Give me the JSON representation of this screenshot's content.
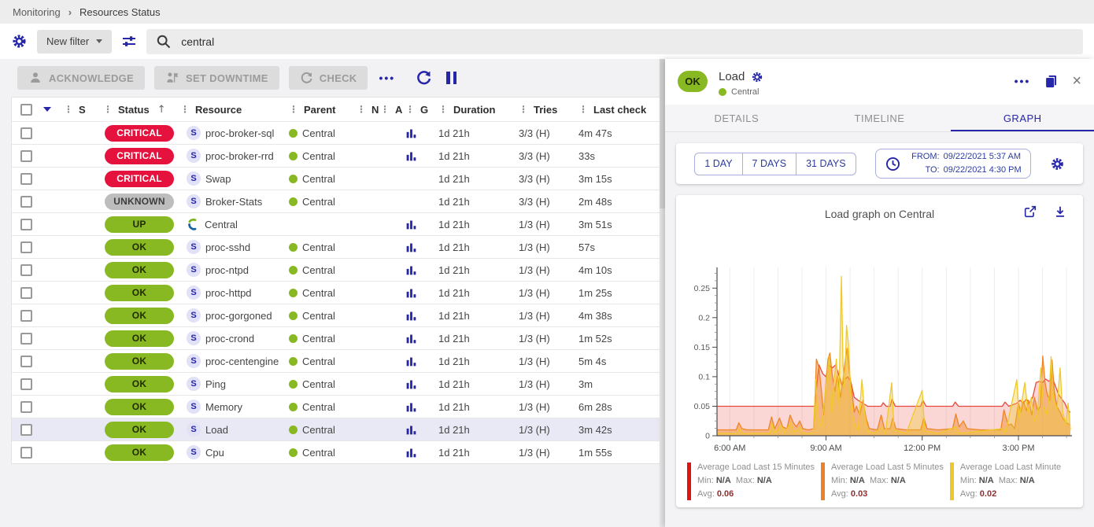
{
  "breadcrumb": {
    "items": [
      "Monitoring",
      "Resources Status"
    ],
    "separator": "›"
  },
  "filter_bar": {
    "new_filter_label": "New filter",
    "search_value": "central"
  },
  "toolbar": {
    "acknowledge_label": "ACKNOWLEDGE",
    "set_downtime_label": "SET DOWNTIME",
    "check_label": "CHECK",
    "more_label": "•••"
  },
  "table": {
    "headers": {
      "s": "S",
      "status": "Status",
      "resource": "Resource",
      "parent": "Parent",
      "n": "N",
      "a": "A",
      "g": "G",
      "duration": "Duration",
      "tries": "Tries",
      "last_check": "Last check"
    },
    "sort_arrow": "↑",
    "rows": [
      {
        "status": "CRITICAL",
        "type": "critical",
        "icon": "service",
        "resource": "proc-broker-sql",
        "parent": "Central",
        "graph": true,
        "duration": "1d 21h",
        "tries": "3/3 (H)",
        "last_check": "4m 47s",
        "selected": false
      },
      {
        "status": "CRITICAL",
        "type": "critical",
        "icon": "service",
        "resource": "proc-broker-rrd",
        "parent": "Central",
        "graph": true,
        "duration": "1d 21h",
        "tries": "3/3 (H)",
        "last_check": "33s",
        "selected": false
      },
      {
        "status": "CRITICAL",
        "type": "critical",
        "icon": "service",
        "resource": "Swap",
        "parent": "Central",
        "graph": false,
        "duration": "1d 21h",
        "tries": "3/3 (H)",
        "last_check": "3m 15s",
        "selected": false
      },
      {
        "status": "UNKNOWN",
        "type": "unknown",
        "icon": "service",
        "resource": "Broker-Stats",
        "parent": "Central",
        "graph": false,
        "duration": "1d 21h",
        "tries": "3/3 (H)",
        "last_check": "2m 48s",
        "selected": false
      },
      {
        "status": "UP",
        "type": "up",
        "icon": "host",
        "resource": "Central",
        "parent": "",
        "graph": true,
        "duration": "1d 21h",
        "tries": "1/3 (H)",
        "last_check": "3m 51s",
        "selected": false
      },
      {
        "status": "OK",
        "type": "ok",
        "icon": "service",
        "resource": "proc-sshd",
        "parent": "Central",
        "graph": true,
        "duration": "1d 21h",
        "tries": "1/3 (H)",
        "last_check": "57s",
        "selected": false
      },
      {
        "status": "OK",
        "type": "ok",
        "icon": "service",
        "resource": "proc-ntpd",
        "parent": "Central",
        "graph": true,
        "duration": "1d 21h",
        "tries": "1/3 (H)",
        "last_check": "4m 10s",
        "selected": false
      },
      {
        "status": "OK",
        "type": "ok",
        "icon": "service",
        "resource": "proc-httpd",
        "parent": "Central",
        "graph": true,
        "duration": "1d 21h",
        "tries": "1/3 (H)",
        "last_check": "1m 25s",
        "selected": false
      },
      {
        "status": "OK",
        "type": "ok",
        "icon": "service",
        "resource": "proc-gorgoned",
        "parent": "Central",
        "graph": true,
        "duration": "1d 21h",
        "tries": "1/3 (H)",
        "last_check": "4m 38s",
        "selected": false
      },
      {
        "status": "OK",
        "type": "ok",
        "icon": "service",
        "resource": "proc-crond",
        "parent": "Central",
        "graph": true,
        "duration": "1d 21h",
        "tries": "1/3 (H)",
        "last_check": "1m 52s",
        "selected": false
      },
      {
        "status": "OK",
        "type": "ok",
        "icon": "service",
        "resource": "proc-centengine",
        "parent": "Central",
        "graph": true,
        "duration": "1d 21h",
        "tries": "1/3 (H)",
        "last_check": "5m 4s",
        "selected": false
      },
      {
        "status": "OK",
        "type": "ok",
        "icon": "service",
        "resource": "Ping",
        "parent": "Central",
        "graph": true,
        "duration": "1d 21h",
        "tries": "1/3 (H)",
        "last_check": "3m",
        "selected": false
      },
      {
        "status": "OK",
        "type": "ok",
        "icon": "service",
        "resource": "Memory",
        "parent": "Central",
        "graph": true,
        "duration": "1d 21h",
        "tries": "1/3 (H)",
        "last_check": "6m 28s",
        "selected": false
      },
      {
        "status": "OK",
        "type": "ok",
        "icon": "service",
        "resource": "Load",
        "parent": "Central",
        "graph": true,
        "duration": "1d 21h",
        "tries": "1/3 (H)",
        "last_check": "3m 42s",
        "selected": true
      },
      {
        "status": "OK",
        "type": "ok",
        "icon": "service",
        "resource": "Cpu",
        "parent": "Central",
        "graph": true,
        "duration": "1d 21h",
        "tries": "1/3 (H)",
        "last_check": "1m 55s",
        "selected": false
      }
    ]
  },
  "panel": {
    "status": "OK",
    "title": "Load",
    "parent": "Central",
    "close_label": "×",
    "more_label": "•••",
    "tabs": [
      {
        "label": "DETAILS",
        "active": false
      },
      {
        "label": "TIMELINE",
        "active": false
      },
      {
        "label": "GRAPH",
        "active": true
      }
    ],
    "time_buttons": [
      "1 DAY",
      "7 DAYS",
      "31 DAYS"
    ],
    "from_label": "FROM:",
    "from_value": "09/22/2021 5:37 AM",
    "to_label": "TO:",
    "to_value": "09/22/2021 4:30 PM"
  },
  "chart_data": {
    "type": "area",
    "title": "Load graph on Central",
    "x_range_hours": [
      5.6,
      16.67
    ],
    "xticks": [
      {
        "hour": 6,
        "label": "6:00 AM"
      },
      {
        "hour": 9,
        "label": "9:00 AM"
      },
      {
        "hour": 12,
        "label": "12:00 PM"
      },
      {
        "hour": 15,
        "label": "3:00 PM"
      }
    ],
    "grid_step_hours": 0.75,
    "ylim": [
      0,
      0.285
    ],
    "yticks": [
      0,
      0.05,
      0.1,
      0.15,
      0.2,
      0.25
    ],
    "legend_position": "bottom",
    "legend_labels": {
      "min": "Min:",
      "max": "Max:",
      "avg": "Avg:"
    },
    "series": [
      {
        "name": "Average Load Last 15 Minutes",
        "stroke": "#e8493c",
        "fill": "rgba(232,73,60,0.22)",
        "swatch": "#e01313",
        "min": "N/A",
        "max": "N/A",
        "avg": "0.06",
        "points": [
          [
            5.6,
            0.05
          ],
          [
            8.65,
            0.05
          ],
          [
            8.72,
            0.09
          ],
          [
            8.78,
            0.12
          ],
          [
            8.9,
            0.105
          ],
          [
            9.0,
            0.1
          ],
          [
            9.08,
            0.12
          ],
          [
            9.2,
            0.115
          ],
          [
            9.3,
            0.12
          ],
          [
            9.42,
            0.1
          ],
          [
            9.5,
            0.085
          ],
          [
            9.58,
            0.095
          ],
          [
            9.68,
            0.1
          ],
          [
            9.78,
            0.09
          ],
          [
            9.88,
            0.065
          ],
          [
            10.0,
            0.06
          ],
          [
            10.15,
            0.055
          ],
          [
            10.3,
            0.05
          ],
          [
            10.72,
            0.05
          ],
          [
            10.78,
            0.056
          ],
          [
            10.88,
            0.05
          ],
          [
            11.0,
            0.05
          ],
          [
            11.06,
            0.062
          ],
          [
            11.16,
            0.05
          ],
          [
            11.95,
            0.05
          ],
          [
            12.02,
            0.06
          ],
          [
            12.12,
            0.05
          ],
          [
            12.95,
            0.05
          ],
          [
            13.03,
            0.057
          ],
          [
            13.13,
            0.05
          ],
          [
            14.5,
            0.05
          ],
          [
            14.58,
            0.057
          ],
          [
            14.7,
            0.05
          ],
          [
            14.95,
            0.055
          ],
          [
            15.05,
            0.06
          ],
          [
            15.15,
            0.055
          ],
          [
            15.25,
            0.062
          ],
          [
            15.35,
            0.056
          ],
          [
            15.45,
            0.066
          ],
          [
            15.55,
            0.09
          ],
          [
            15.65,
            0.092
          ],
          [
            15.75,
            0.09
          ],
          [
            15.85,
            0.096
          ],
          [
            15.95,
            0.092
          ],
          [
            16.05,
            0.1
          ],
          [
            16.15,
            0.085
          ],
          [
            16.25,
            0.07
          ],
          [
            16.35,
            0.062
          ],
          [
            16.45,
            0.055
          ],
          [
            16.55,
            0.042
          ],
          [
            16.62,
            0.04
          ]
        ]
      },
      {
        "name": "Average Load Last 5 Minutes",
        "stroke": "#ef8423",
        "fill": "rgba(239,132,35,0.45)",
        "swatch": "#e8832a",
        "min": "N/A",
        "max": "N/A",
        "avg": "0.03",
        "points": [
          [
            5.6,
            0.01
          ],
          [
            6.2,
            0.01
          ],
          [
            6.28,
            0.022
          ],
          [
            6.38,
            0.012
          ],
          [
            6.55,
            0.01
          ],
          [
            7.2,
            0.01
          ],
          [
            7.3,
            0.032
          ],
          [
            7.4,
            0.012
          ],
          [
            7.55,
            0.03
          ],
          [
            7.65,
            0.015
          ],
          [
            7.78,
            0.012
          ],
          [
            7.88,
            0.035
          ],
          [
            7.98,
            0.022
          ],
          [
            8.08,
            0.015
          ],
          [
            8.18,
            0.025
          ],
          [
            8.28,
            0.012
          ],
          [
            8.45,
            0.01
          ],
          [
            8.62,
            0.012
          ],
          [
            8.7,
            0.13
          ],
          [
            8.78,
            0.115
          ],
          [
            8.85,
            0.08
          ],
          [
            8.92,
            0.035
          ],
          [
            9.0,
            0.09
          ],
          [
            9.06,
            0.13
          ],
          [
            9.12,
            0.14
          ],
          [
            9.2,
            0.1
          ],
          [
            9.28,
            0.075
          ],
          [
            9.35,
            0.105
          ],
          [
            9.45,
            0.065
          ],
          [
            9.52,
            0.09
          ],
          [
            9.6,
            0.13
          ],
          [
            9.66,
            0.148
          ],
          [
            9.72,
            0.11
          ],
          [
            9.8,
            0.08
          ],
          [
            9.88,
            0.04
          ],
          [
            9.95,
            0.05
          ],
          [
            10.05,
            0.035
          ],
          [
            10.15,
            0.06
          ],
          [
            10.25,
            0.03
          ],
          [
            10.35,
            0.012
          ],
          [
            10.6,
            0.01
          ],
          [
            10.72,
            0.035
          ],
          [
            10.82,
            0.012
          ],
          [
            11.0,
            0.012
          ],
          [
            11.08,
            0.03
          ],
          [
            11.18,
            0.012
          ],
          [
            11.5,
            0.01
          ],
          [
            11.95,
            0.01
          ],
          [
            12.05,
            0.03
          ],
          [
            12.15,
            0.012
          ],
          [
            12.5,
            0.01
          ],
          [
            12.95,
            0.012
          ],
          [
            13.05,
            0.037
          ],
          [
            13.15,
            0.015
          ],
          [
            13.28,
            0.025
          ],
          [
            13.4,
            0.012
          ],
          [
            13.8,
            0.01
          ],
          [
            14.45,
            0.01
          ],
          [
            14.55,
            0.044
          ],
          [
            14.68,
            0.018
          ],
          [
            14.78,
            0.02
          ],
          [
            14.88,
            0.012
          ],
          [
            15.0,
            0.055
          ],
          [
            15.08,
            0.04
          ],
          [
            15.16,
            0.058
          ],
          [
            15.25,
            0.042
          ],
          [
            15.32,
            0.06
          ],
          [
            15.42,
            0.035
          ],
          [
            15.5,
            0.065
          ],
          [
            15.6,
            0.042
          ],
          [
            15.68,
            0.05
          ],
          [
            15.76,
            0.135
          ],
          [
            15.83,
            0.09
          ],
          [
            15.9,
            0.07
          ],
          [
            15.98,
            0.06
          ],
          [
            16.05,
            0.128
          ],
          [
            16.12,
            0.075
          ],
          [
            16.2,
            0.05
          ],
          [
            16.3,
            0.04
          ],
          [
            16.4,
            0.028
          ],
          [
            16.5,
            0.022
          ],
          [
            16.62,
            0.018
          ]
        ]
      },
      {
        "name": "Average Load Last Minute",
        "stroke": "#f0c929",
        "fill": "rgba(240,201,41,0.35)",
        "swatch": "#ecc72e",
        "min": "N/A",
        "max": "N/A",
        "avg": "0.02",
        "points": [
          [
            5.6,
            0.004
          ],
          [
            6.24,
            0.004
          ],
          [
            6.3,
            0.012
          ],
          [
            6.4,
            0.004
          ],
          [
            7.25,
            0.004
          ],
          [
            7.32,
            0.02
          ],
          [
            7.42,
            0.005
          ],
          [
            7.6,
            0.018
          ],
          [
            7.7,
            0.005
          ],
          [
            7.9,
            0.022
          ],
          [
            8.0,
            0.006
          ],
          [
            8.2,
            0.014
          ],
          [
            8.3,
            0.004
          ],
          [
            8.6,
            0.004
          ],
          [
            8.68,
            0.095
          ],
          [
            8.75,
            0.03
          ],
          [
            8.85,
            0.015
          ],
          [
            8.95,
            0.06
          ],
          [
            9.02,
            0.095
          ],
          [
            9.1,
            0.135
          ],
          [
            9.18,
            0.04
          ],
          [
            9.25,
            0.09
          ],
          [
            9.32,
            0.13
          ],
          [
            9.4,
            0.05
          ],
          [
            9.48,
            0.27
          ],
          [
            9.53,
            0.12
          ],
          [
            9.58,
            0.08
          ],
          [
            9.64,
            0.187
          ],
          [
            9.7,
            0.155
          ],
          [
            9.78,
            0.06
          ],
          [
            9.85,
            0.03
          ],
          [
            9.92,
            0.015
          ],
          [
            10.0,
            0.01
          ],
          [
            10.12,
            0.095
          ],
          [
            10.2,
            0.04
          ],
          [
            10.3,
            0.008
          ],
          [
            10.5,
            0.004
          ],
          [
            10.75,
            0.015
          ],
          [
            10.85,
            0.004
          ],
          [
            11.05,
            0.09
          ],
          [
            11.12,
            0.01
          ],
          [
            11.5,
            0.004
          ],
          [
            12.0,
            0.077
          ],
          [
            12.08,
            0.008
          ],
          [
            12.5,
            0.004
          ],
          [
            13.05,
            0.015
          ],
          [
            13.15,
            0.004
          ],
          [
            14.5,
            0.012
          ],
          [
            14.6,
            0.006
          ],
          [
            14.95,
            0.095
          ],
          [
            15.02,
            0.03
          ],
          [
            15.1,
            0.055
          ],
          [
            15.2,
            0.09
          ],
          [
            15.3,
            0.04
          ],
          [
            15.4,
            0.065
          ],
          [
            15.5,
            0.025
          ],
          [
            15.6,
            0.04
          ],
          [
            15.7,
            0.115
          ],
          [
            15.78,
            0.05
          ],
          [
            15.88,
            0.035
          ],
          [
            15.95,
            0.06
          ],
          [
            16.02,
            0.134
          ],
          [
            16.1,
            0.06
          ],
          [
            16.2,
            0.045
          ],
          [
            16.3,
            0.115
          ],
          [
            16.38,
            0.04
          ],
          [
            16.48,
            0.02
          ],
          [
            16.55,
            0.055
          ],
          [
            16.62,
            0.01
          ]
        ]
      }
    ]
  }
}
